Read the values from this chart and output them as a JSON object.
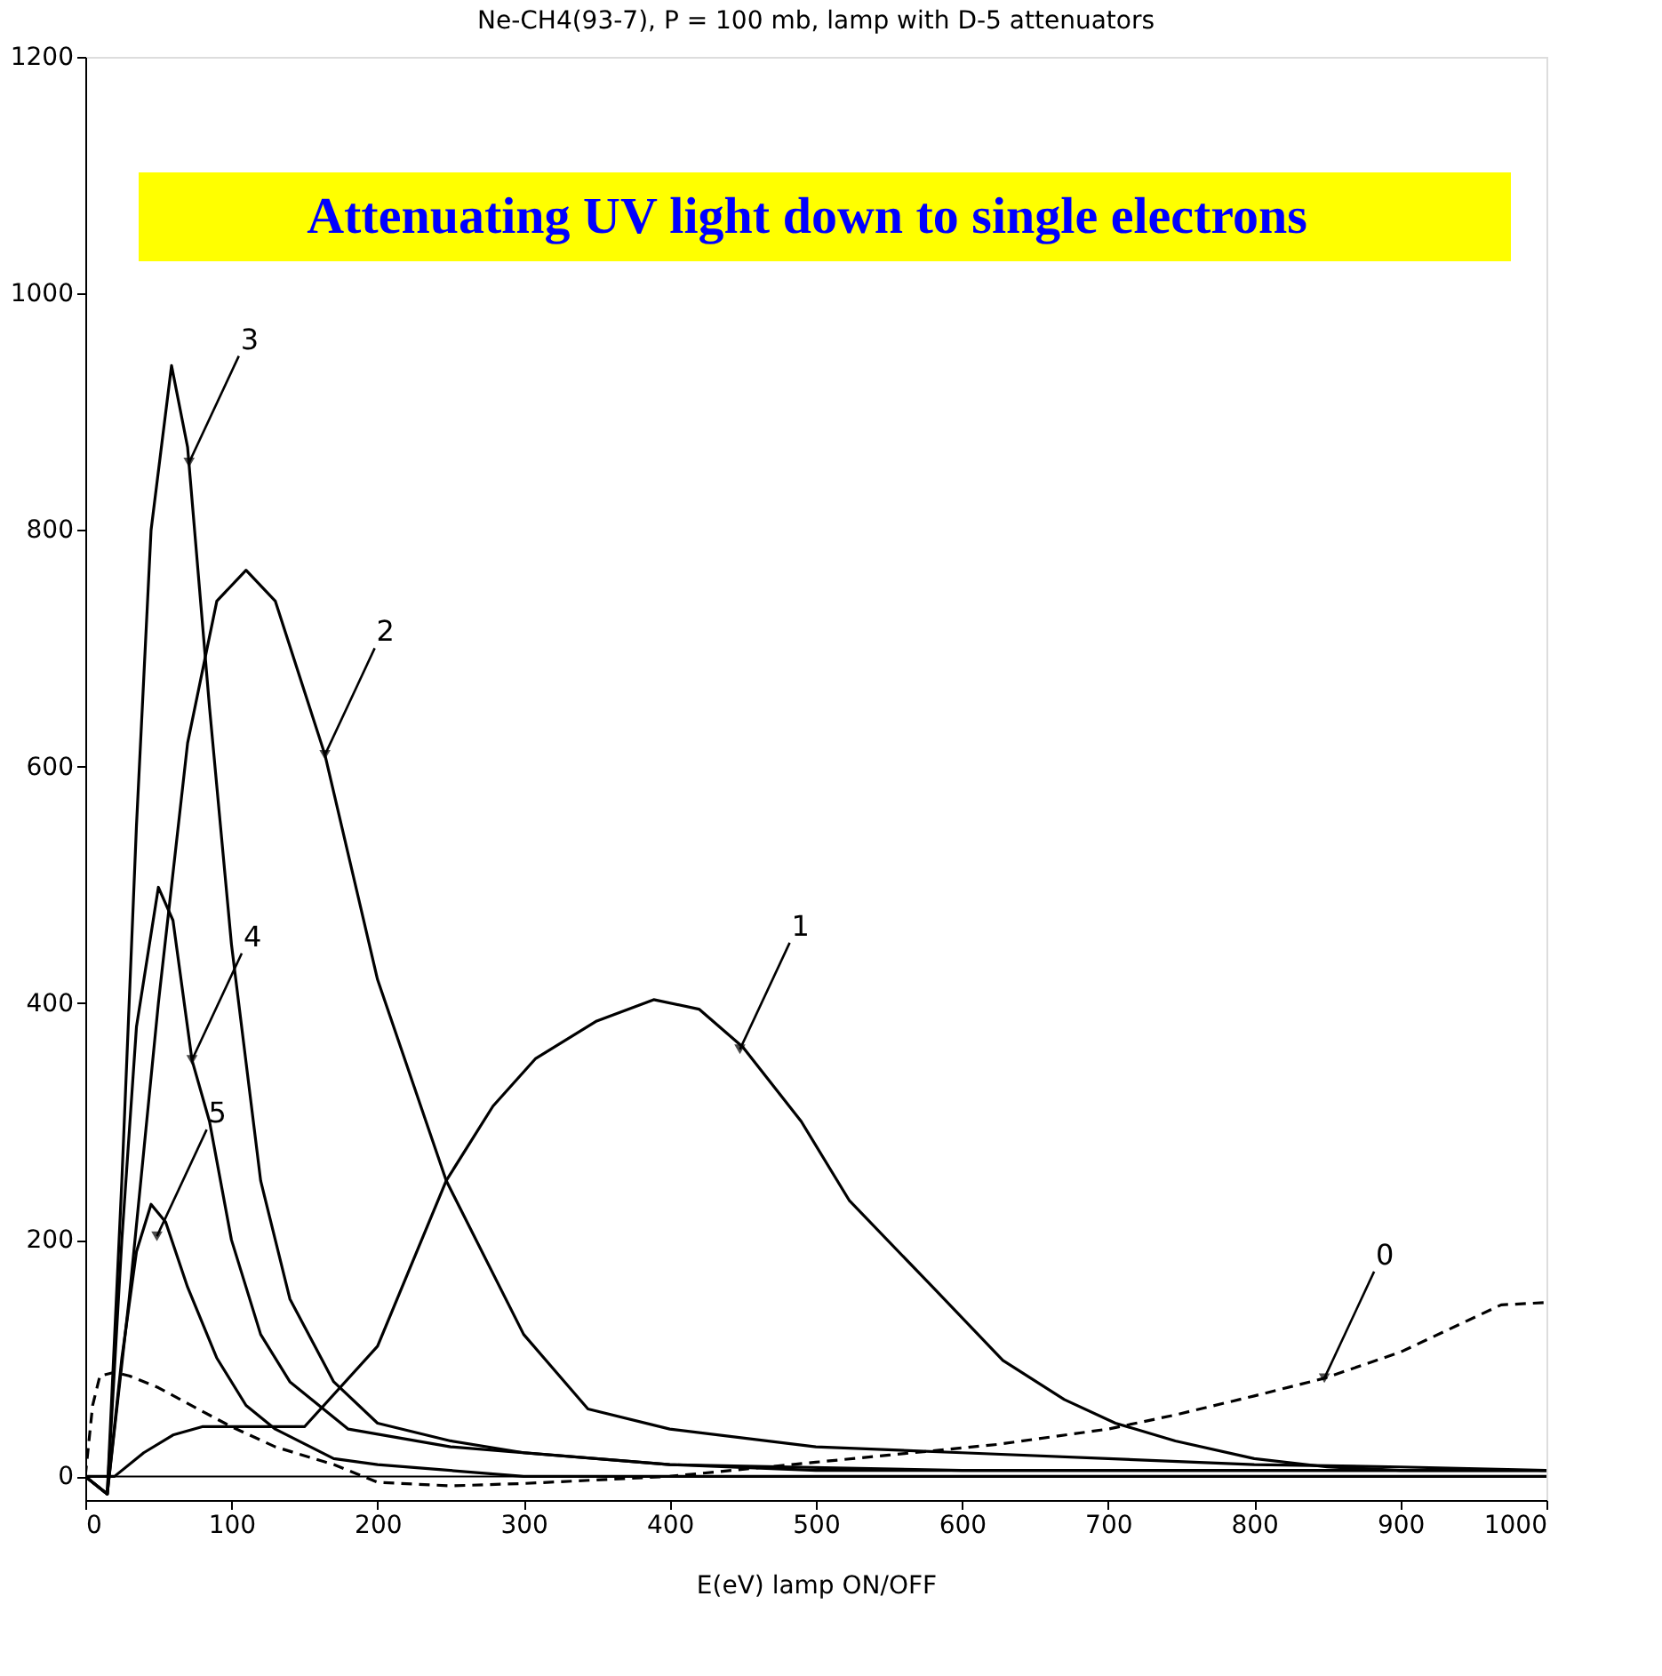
{
  "chart_data": {
    "type": "line",
    "title": "Ne-CH4(93-7), P = 100 mb, lamp with D-5 attenuators",
    "xlabel": "E(eV) lamp ON/OFF",
    "xlim": [
      0,
      1000
    ],
    "ylim": [
      -20,
      1200
    ],
    "xticks": [
      0,
      100,
      200,
      300,
      400,
      500,
      600,
      700,
      800,
      900,
      1000
    ],
    "yticks": [
      0,
      200,
      400,
      600,
      800,
      1000,
      1200
    ],
    "grid": false,
    "marker": "none",
    "ref_lines": [
      {
        "axis": "y",
        "value": 0,
        "color": "#000000"
      }
    ],
    "annotations": [
      "Attenuating UV light down to single electrons",
      {
        "text": "3",
        "x": 71,
        "y": 857
      },
      {
        "text": "2",
        "x": 164,
        "y": 610
      },
      {
        "text": "1",
        "x": 448,
        "y": 361
      },
      {
        "text": "4",
        "x": 73,
        "y": 352
      },
      {
        "text": "5",
        "x": 49,
        "y": 203
      },
      {
        "text": "0",
        "x": 848,
        "y": 83
      }
    ],
    "series": [
      {
        "color": "#000000",
        "line_style": "dashed",
        "x": [
          0,
          5,
          10,
          20,
          30,
          50,
          80,
          100,
          130,
          170,
          200,
          250,
          300,
          400,
          500,
          550,
          624,
          700,
          746,
          800,
          848,
          900,
          969,
          1000
        ],
        "values": [
          0,
          60,
          85,
          88,
          85,
          75,
          55,
          42,
          25,
          10,
          -5,
          -8,
          -6,
          0,
          12,
          18,
          27,
          40,
          52,
          68,
          83,
          105,
          145,
          147
        ]
      },
      {
        "color": "#000000",
        "x": [
          0,
          20,
          40,
          60,
          80,
          100,
          150,
          200,
          247,
          279,
          308,
          350,
          389,
          420,
          450,
          490,
          523,
          580,
          628,
          670,
          705,
          746,
          800,
          850,
          900,
          1000
        ],
        "values": [
          0,
          0,
          20,
          35,
          42,
          42,
          42,
          110,
          250,
          313,
          353,
          385,
          403,
          395,
          363,
          300,
          233,
          160,
          98,
          65,
          45,
          30,
          15,
          8,
          5,
          5
        ]
      },
      {
        "color": "#000000",
        "x": [
          0,
          15,
          30,
          50,
          70,
          90,
          110,
          130,
          164,
          200,
          247,
          300,
          344,
          400,
          500,
          600,
          700,
          800,
          900,
          1000
        ],
        "values": [
          0,
          -15,
          150,
          400,
          620,
          740,
          766,
          740,
          610,
          420,
          250,
          120,
          57,
          40,
          25,
          20,
          15,
          10,
          8,
          5
        ]
      },
      {
        "color": "#000000",
        "x": [
          0,
          15,
          25,
          35,
          45,
          59,
          70,
          85,
          100,
          120,
          140,
          170,
          200,
          250,
          300,
          400,
          500,
          700,
          1000
        ],
        "values": [
          0,
          -15,
          250,
          550,
          800,
          939,
          870,
          650,
          450,
          250,
          150,
          80,
          45,
          30,
          20,
          10,
          5,
          5,
          5
        ]
      },
      {
        "color": "#000000",
        "x": [
          0,
          15,
          25,
          35,
          50,
          60,
          73,
          85,
          100,
          120,
          140,
          180,
          250,
          400,
          600,
          1000
        ],
        "values": [
          0,
          -15,
          200,
          380,
          498,
          470,
          352,
          300,
          200,
          120,
          80,
          40,
          25,
          10,
          5,
          5
        ]
      },
      {
        "color": "#000000",
        "x": [
          0,
          15,
          25,
          35,
          45,
          55,
          70,
          90,
          110,
          130,
          170,
          200,
          300,
          500,
          1000
        ],
        "values": [
          0,
          -15,
          100,
          190,
          230,
          215,
          160,
          100,
          60,
          40,
          15,
          10,
          0,
          0,
          0
        ]
      }
    ]
  }
}
